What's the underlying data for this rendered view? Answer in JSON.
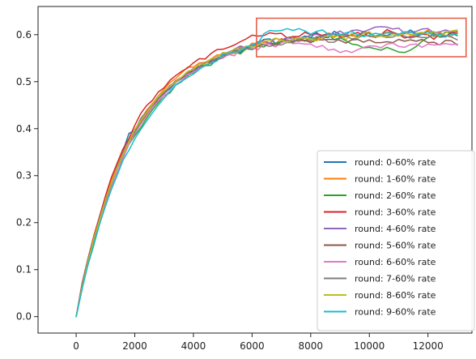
{
  "chart_data": {
    "type": "line",
    "title": "",
    "xlabel": "",
    "ylabel": "",
    "xlim": [
      -1300,
      13500
    ],
    "ylim": [
      -0.035,
      0.66
    ],
    "xticks": [
      0,
      2000,
      4000,
      6000,
      8000,
      10000,
      12000
    ],
    "xtick_labels": [
      "0",
      "2000",
      "4000",
      "6000",
      "8000",
      "10000",
      "12000"
    ],
    "yticks": [
      0.0,
      0.1,
      0.2,
      0.3,
      0.4,
      0.5,
      0.6
    ],
    "ytick_labels": [
      "0.0",
      "0.1",
      "0.2",
      "0.3",
      "0.4",
      "0.5",
      "0.6"
    ],
    "grid": false,
    "legend_position": "lower-right",
    "highlight_box": {
      "x": [
        6150,
        13300
      ],
      "y": [
        0.553,
        0.635
      ],
      "color": "#e8604c"
    },
    "colors": [
      "#1f77b4",
      "#ff7f0e",
      "#2ca02c",
      "#d62728",
      "#9467bd",
      "#8c564b",
      "#e377c2",
      "#7f7f7f",
      "#bcbd22",
      "#17becf"
    ],
    "x": [
      0,
      200,
      400,
      600,
      800,
      1000,
      1200,
      1400,
      1600,
      1800,
      2000,
      2200,
      2400,
      2600,
      2800,
      3000,
      3200,
      3400,
      3600,
      3800,
      4000,
      4200,
      4400,
      4600,
      4800,
      5000,
      5200,
      5400,
      5600,
      5800,
      6000,
      6200,
      6400,
      6600,
      6800,
      7000,
      7200,
      7400,
      7600,
      7800,
      8000,
      8200,
      8400,
      8600,
      8800,
      9000,
      9200,
      9400,
      9600,
      9800,
      10000,
      10200,
      10400,
      10600,
      10800,
      11000,
      11200,
      11400,
      11600,
      11800,
      12000,
      12200,
      12400,
      12600,
      12800,
      13000
    ],
    "series": [
      {
        "name": "round: 0-60% rate",
        "values": [
          0.0,
          0.063,
          0.115,
          0.16,
          0.204,
          0.247,
          0.285,
          0.322,
          0.353,
          0.39,
          0.396,
          0.421,
          0.438,
          0.453,
          0.463,
          0.475,
          0.485,
          0.499,
          0.507,
          0.518,
          0.523,
          0.531,
          0.538,
          0.547,
          0.545,
          0.555,
          0.557,
          0.566,
          0.562,
          0.575,
          0.573,
          0.582,
          0.59,
          0.591,
          0.582,
          0.583,
          0.594,
          0.595,
          0.591,
          0.597,
          0.594,
          0.605,
          0.594,
          0.594,
          0.607,
          0.601,
          0.599,
          0.599,
          0.597,
          0.607,
          0.603,
          0.597,
          0.6,
          0.598,
          0.604,
          0.6,
          0.602,
          0.61,
          0.602,
          0.603,
          0.608,
          0.602,
          0.595,
          0.596,
          0.605,
          0.603
        ]
      },
      {
        "name": "round: 1-60% rate",
        "values": [
          0.0,
          0.064,
          0.12,
          0.168,
          0.213,
          0.253,
          0.29,
          0.325,
          0.35,
          0.374,
          0.398,
          0.418,
          0.439,
          0.453,
          0.47,
          0.484,
          0.498,
          0.507,
          0.519,
          0.531,
          0.531,
          0.54,
          0.541,
          0.548,
          0.557,
          0.557,
          0.56,
          0.56,
          0.574,
          0.57,
          0.582,
          0.58,
          0.584,
          0.582,
          0.581,
          0.592,
          0.583,
          0.583,
          0.591,
          0.588,
          0.587,
          0.591,
          0.593,
          0.599,
          0.597,
          0.599,
          0.598,
          0.598,
          0.595,
          0.604,
          0.596,
          0.595,
          0.599,
          0.606,
          0.605,
          0.598,
          0.603,
          0.601,
          0.597,
          0.602,
          0.61,
          0.595,
          0.605,
          0.598,
          0.597,
          0.605
        ]
      },
      {
        "name": "round: 2-60% rate",
        "values": [
          0.0,
          0.06,
          0.11,
          0.152,
          0.198,
          0.24,
          0.273,
          0.306,
          0.338,
          0.367,
          0.385,
          0.402,
          0.422,
          0.44,
          0.455,
          0.47,
          0.476,
          0.493,
          0.5,
          0.514,
          0.519,
          0.527,
          0.534,
          0.535,
          0.548,
          0.55,
          0.561,
          0.564,
          0.559,
          0.57,
          0.568,
          0.575,
          0.574,
          0.582,
          0.581,
          0.586,
          0.589,
          0.585,
          0.592,
          0.586,
          0.593,
          0.593,
          0.599,
          0.601,
          0.589,
          0.594,
          0.587,
          0.58,
          0.578,
          0.572,
          0.573,
          0.57,
          0.567,
          0.573,
          0.568,
          0.563,
          0.562,
          0.567,
          0.575,
          0.586,
          0.594,
          0.602,
          0.596,
          0.606,
          0.603,
          0.598
        ]
      },
      {
        "name": "round: 3-60% rate",
        "values": [
          0.0,
          0.07,
          0.123,
          0.171,
          0.214,
          0.257,
          0.296,
          0.327,
          0.357,
          0.379,
          0.407,
          0.432,
          0.449,
          0.46,
          0.478,
          0.487,
          0.503,
          0.513,
          0.522,
          0.529,
          0.54,
          0.549,
          0.548,
          0.56,
          0.568,
          0.569,
          0.573,
          0.578,
          0.585,
          0.591,
          0.599,
          0.597,
          0.598,
          0.604,
          0.602,
          0.603,
          0.593,
          0.596,
          0.596,
          0.605,
          0.6,
          0.603,
          0.598,
          0.603,
          0.601,
          0.596,
          0.596,
          0.6,
          0.605,
          0.597,
          0.606,
          0.594,
          0.6,
          0.611,
          0.605,
          0.601,
          0.593,
          0.596,
          0.596,
          0.601,
          0.6,
          0.59,
          0.602,
          0.595,
          0.606,
          0.602
        ]
      },
      {
        "name": "round: 4-60% rate",
        "values": [
          0.0,
          0.064,
          0.116,
          0.163,
          0.208,
          0.247,
          0.281,
          0.316,
          0.348,
          0.371,
          0.392,
          0.412,
          0.436,
          0.448,
          0.465,
          0.474,
          0.488,
          0.5,
          0.506,
          0.519,
          0.524,
          0.538,
          0.539,
          0.545,
          0.553,
          0.559,
          0.563,
          0.569,
          0.576,
          0.572,
          0.577,
          0.585,
          0.587,
          0.582,
          0.592,
          0.589,
          0.594,
          0.59,
          0.586,
          0.594,
          0.599,
          0.601,
          0.596,
          0.601,
          0.601,
          0.608,
          0.6,
          0.609,
          0.61,
          0.606,
          0.611,
          0.616,
          0.617,
          0.616,
          0.612,
          0.614,
          0.603,
          0.605,
          0.607,
          0.612,
          0.613,
          0.604,
          0.606,
          0.61,
          0.606,
          0.607
        ]
      },
      {
        "name": "round: 5-60% rate",
        "values": [
          0.0,
          0.063,
          0.117,
          0.161,
          0.205,
          0.245,
          0.283,
          0.316,
          0.343,
          0.37,
          0.391,
          0.414,
          0.43,
          0.445,
          0.463,
          0.477,
          0.49,
          0.502,
          0.51,
          0.512,
          0.527,
          0.532,
          0.539,
          0.543,
          0.546,
          0.551,
          0.558,
          0.567,
          0.566,
          0.571,
          0.579,
          0.576,
          0.58,
          0.58,
          0.578,
          0.583,
          0.589,
          0.586,
          0.587,
          0.588,
          0.583,
          0.589,
          0.589,
          0.59,
          0.59,
          0.588,
          0.582,
          0.589,
          0.59,
          0.584,
          0.589,
          0.583,
          0.583,
          0.585,
          0.583,
          0.59,
          0.586,
          0.589,
          0.586,
          0.59,
          0.583,
          0.584,
          0.578,
          0.588,
          0.587,
          0.578
        ]
      },
      {
        "name": "round: 6-60% rate",
        "values": [
          0.0,
          0.059,
          0.116,
          0.161,
          0.201,
          0.24,
          0.273,
          0.307,
          0.337,
          0.368,
          0.389,
          0.409,
          0.427,
          0.445,
          0.459,
          0.47,
          0.48,
          0.494,
          0.502,
          0.515,
          0.52,
          0.529,
          0.535,
          0.54,
          0.551,
          0.55,
          0.558,
          0.555,
          0.569,
          0.57,
          0.572,
          0.568,
          0.58,
          0.58,
          0.574,
          0.583,
          0.587,
          0.581,
          0.582,
          0.58,
          0.58,
          0.573,
          0.577,
          0.567,
          0.569,
          0.562,
          0.566,
          0.562,
          0.568,
          0.573,
          0.576,
          0.576,
          0.572,
          0.58,
          0.582,
          0.575,
          0.573,
          0.579,
          0.58,
          0.573,
          0.58,
          0.578,
          0.579,
          0.581,
          0.579,
          0.58
        ]
      },
      {
        "name": "round: 7-60% rate",
        "values": [
          0.0,
          0.066,
          0.12,
          0.163,
          0.209,
          0.247,
          0.283,
          0.32,
          0.347,
          0.375,
          0.393,
          0.416,
          0.436,
          0.452,
          0.464,
          0.479,
          0.492,
          0.499,
          0.51,
          0.519,
          0.528,
          0.533,
          0.54,
          0.541,
          0.55,
          0.555,
          0.562,
          0.566,
          0.571,
          0.57,
          0.573,
          0.584,
          0.578,
          0.575,
          0.579,
          0.578,
          0.584,
          0.583,
          0.592,
          0.593,
          0.586,
          0.596,
          0.594,
          0.584,
          0.584,
          0.592,
          0.597,
          0.591,
          0.593,
          0.599,
          0.597,
          0.595,
          0.597,
          0.594,
          0.595,
          0.6,
          0.597,
          0.593,
          0.596,
          0.594,
          0.594,
          0.6,
          0.598,
          0.598,
          0.595,
          0.589
        ]
      },
      {
        "name": "round: 8-60% rate",
        "values": [
          0.0,
          0.061,
          0.117,
          0.166,
          0.207,
          0.249,
          0.284,
          0.317,
          0.344,
          0.372,
          0.399,
          0.416,
          0.433,
          0.451,
          0.469,
          0.48,
          0.49,
          0.5,
          0.51,
          0.522,
          0.526,
          0.538,
          0.537,
          0.549,
          0.552,
          0.562,
          0.561,
          0.57,
          0.568,
          0.576,
          0.573,
          0.577,
          0.586,
          0.587,
          0.593,
          0.588,
          0.584,
          0.592,
          0.593,
          0.593,
          0.59,
          0.587,
          0.594,
          0.599,
          0.594,
          0.601,
          0.589,
          0.603,
          0.593,
          0.603,
          0.606,
          0.596,
          0.598,
          0.596,
          0.6,
          0.597,
          0.606,
          0.599,
          0.603,
          0.605,
          0.601,
          0.607,
          0.597,
          0.604,
          0.608,
          0.61
        ]
      },
      {
        "name": "round: 9-60% rate",
        "values": [
          0.0,
          0.057,
          0.111,
          0.155,
          0.197,
          0.235,
          0.27,
          0.301,
          0.333,
          0.354,
          0.378,
          0.398,
          0.416,
          0.433,
          0.45,
          0.465,
          0.479,
          0.493,
          0.501,
          0.509,
          0.516,
          0.526,
          0.535,
          0.539,
          0.544,
          0.558,
          0.56,
          0.563,
          0.566,
          0.574,
          0.578,
          0.581,
          0.602,
          0.609,
          0.608,
          0.609,
          0.613,
          0.609,
          0.613,
          0.608,
          0.601,
          0.607,
          0.61,
          0.601,
          0.602,
          0.599,
          0.604,
          0.607,
          0.6,
          0.596,
          0.599,
          0.603,
          0.601,
          0.604,
          0.603,
          0.601,
          0.606,
          0.606,
          0.6,
          0.601,
          0.606,
          0.597,
          0.601,
          0.596,
          0.601,
          0.602
        ]
      }
    ]
  }
}
